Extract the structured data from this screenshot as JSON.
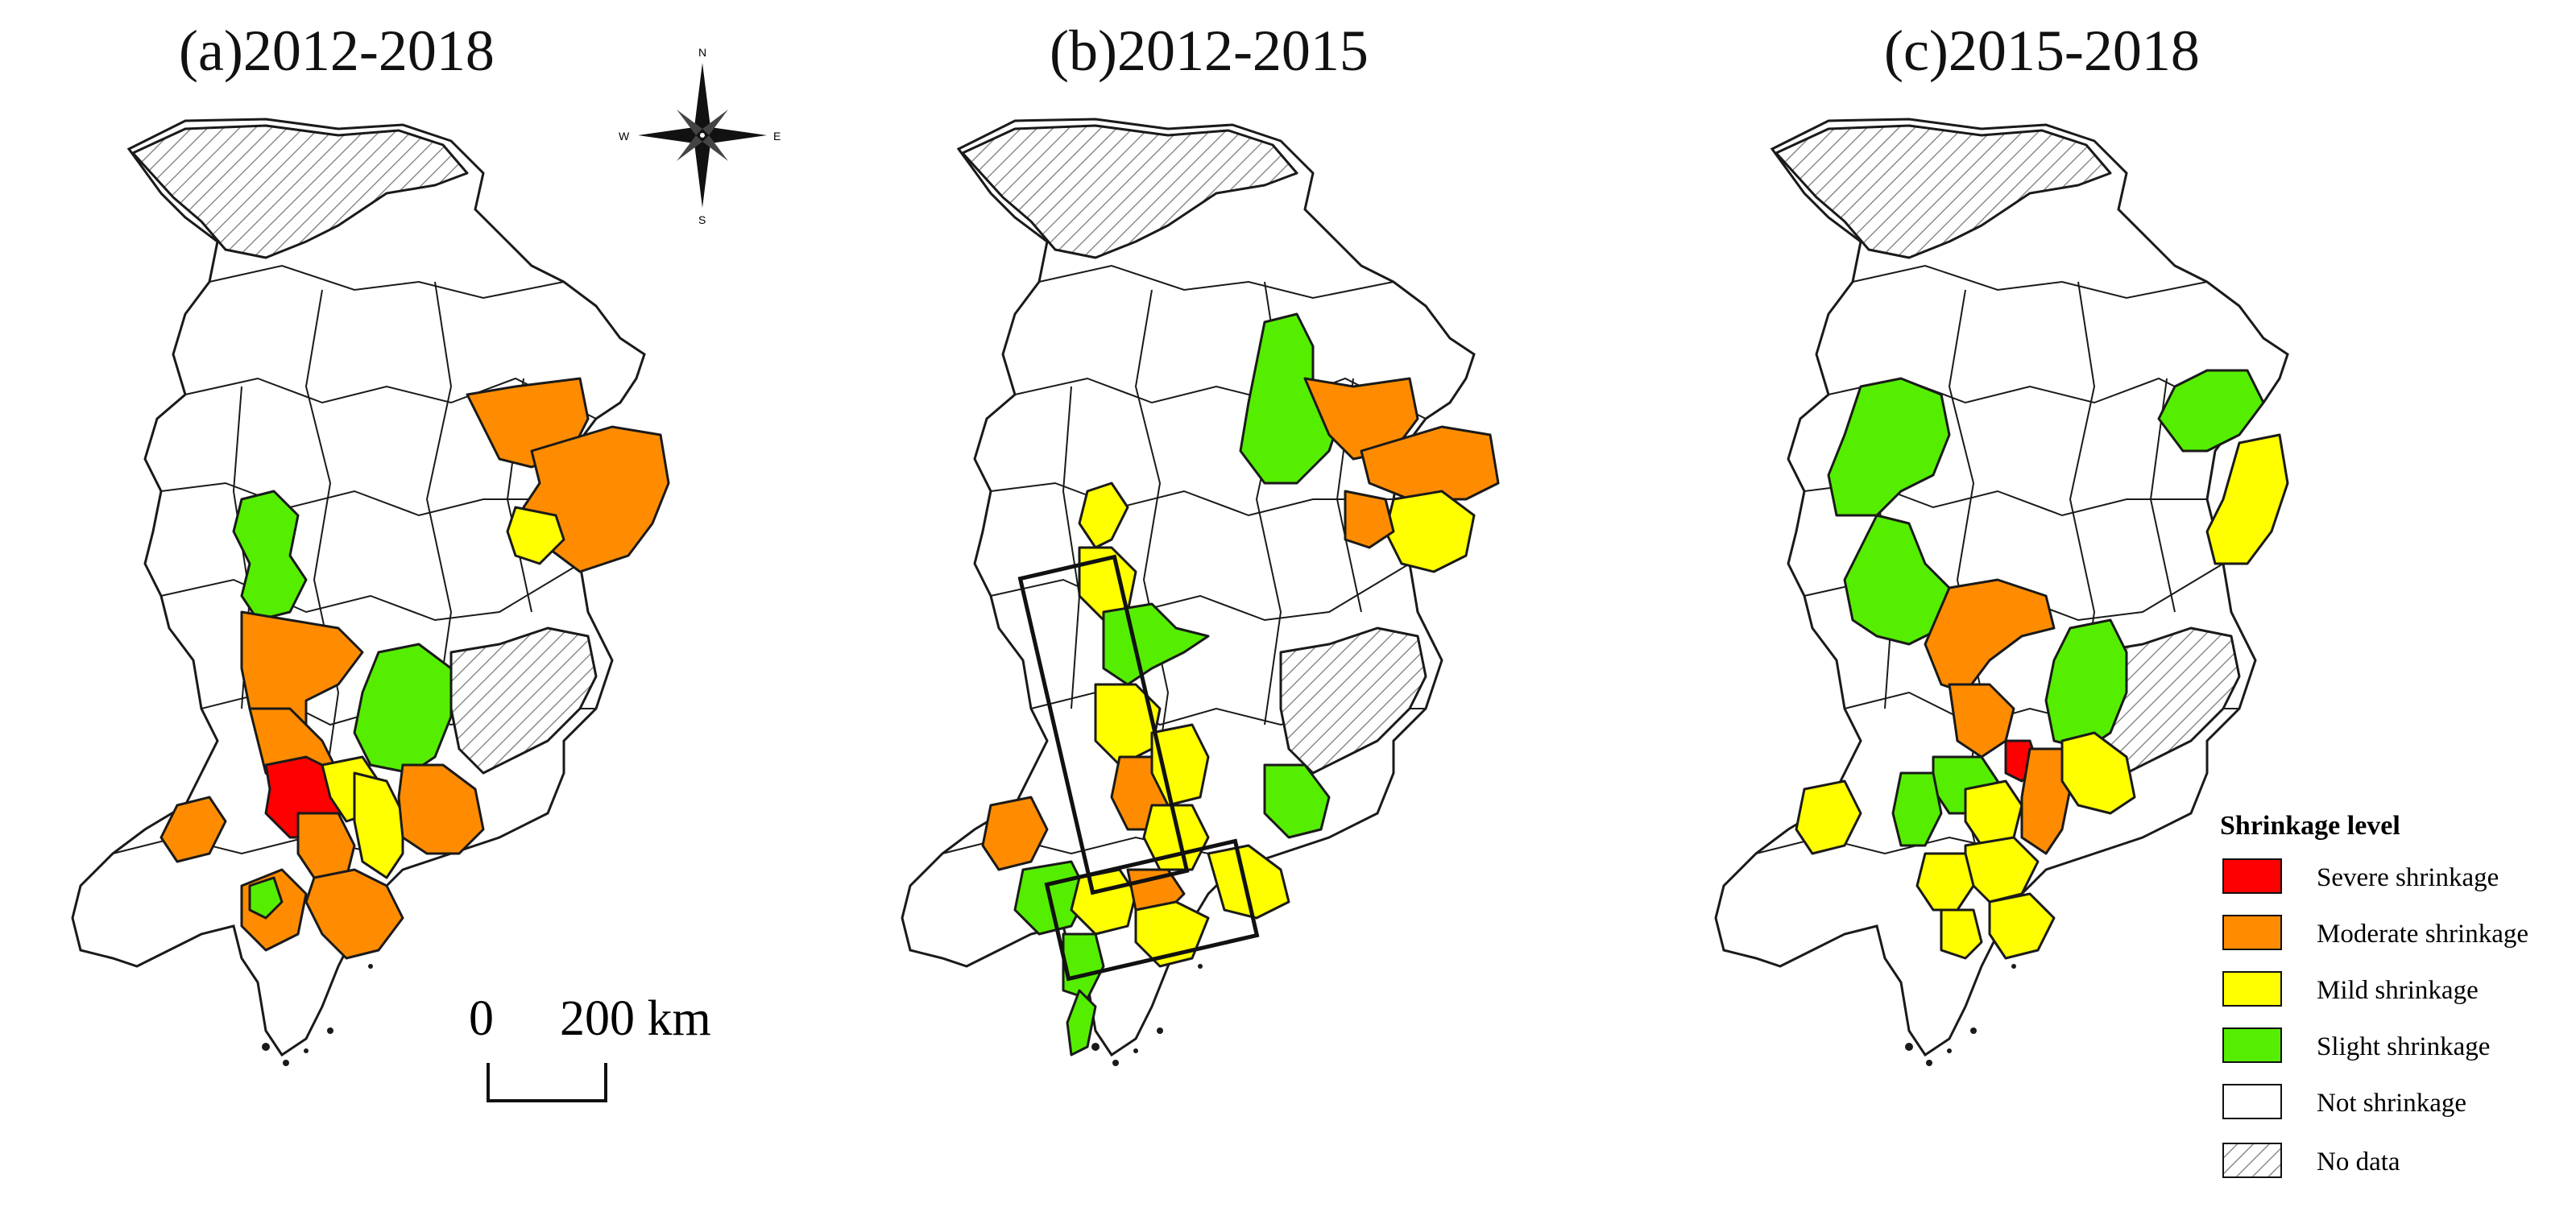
{
  "panels": [
    {
      "id": "a",
      "title": "(a)2012-2018"
    },
    {
      "id": "b",
      "title": "(b)2012-2015"
    },
    {
      "id": "c",
      "title": "(c)2015-2018"
    }
  ],
  "compass": {
    "n": "N",
    "s": "S",
    "e": "E",
    "w": "W"
  },
  "scale_bar": {
    "start": "0",
    "end": "200 km"
  },
  "legend": {
    "title": "Shrinkage level",
    "items": [
      {
        "label": "Severe shrinkage",
        "color": "#ff0000"
      },
      {
        "label": "Moderate shrinkage",
        "color": "#ff8c00"
      },
      {
        "label": "Mild shrinkage",
        "color": "#ffff00"
      },
      {
        "label": "Slight shrinkage",
        "color": "#55ee00"
      },
      {
        "label": "Not shrinkage",
        "color": "#ffffff"
      },
      {
        "label": "No data",
        "color": "hatched"
      }
    ]
  }
}
